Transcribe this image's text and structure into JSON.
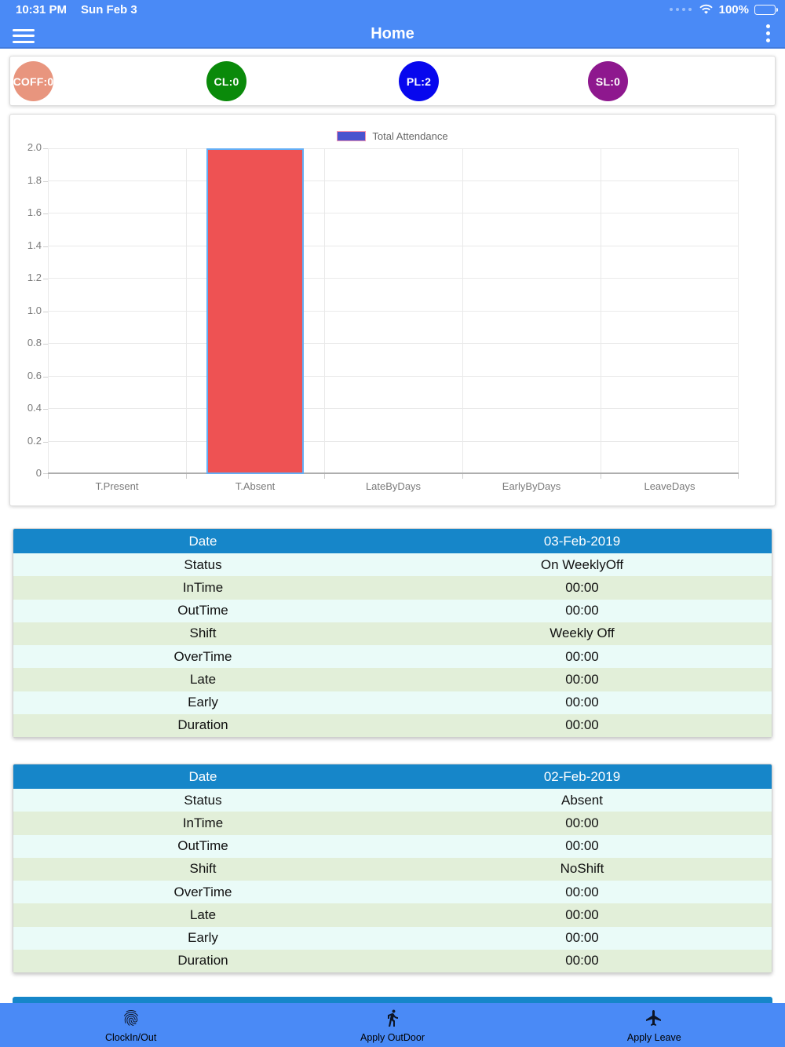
{
  "status_bar": {
    "time": "10:31 PM",
    "date": "Sun Feb 3",
    "battery_percent": "100%"
  },
  "header": {
    "title": "Home"
  },
  "badges": [
    {
      "name": "coff",
      "label": "COFF:0",
      "color": "#e8957e"
    },
    {
      "name": "cl",
      "label": "CL:0",
      "color": "#0a8a0a"
    },
    {
      "name": "pl",
      "label": "PL:2",
      "color": "#0707ee"
    },
    {
      "name": "sl",
      "label": "SL:0",
      "color": "#8e188e"
    }
  ],
  "chart_data": {
    "type": "bar",
    "title": "",
    "legend": [
      {
        "label": "Total Attendance",
        "swatch_fill": "#4a53ce",
        "swatch_border": "#f191b2"
      }
    ],
    "legend_position": "top",
    "categories": [
      "T.Present",
      "T.Absent",
      "LateByDays",
      "EarlyByDays",
      "LeaveDays"
    ],
    "values": [
      0,
      2,
      0,
      0,
      0
    ],
    "bar_color": "#ee5253",
    "bar_border": "#64aef5",
    "ylim": [
      0,
      2
    ],
    "ytick_step": 0.2,
    "yticks": [
      "2.0",
      "1.8",
      "1.6",
      "1.4",
      "1.2",
      "1.0",
      "0.8",
      "0.6",
      "0.4",
      "0.2",
      "0"
    ],
    "grid": true
  },
  "tables": [
    {
      "header": {
        "label": "Date",
        "value": "03-Feb-2019"
      },
      "rows": [
        [
          "Status",
          "On WeeklyOff"
        ],
        [
          "InTime",
          "00:00"
        ],
        [
          "OutTime",
          "00:00"
        ],
        [
          "Shift",
          "Weekly Off"
        ],
        [
          "OverTime",
          "00:00"
        ],
        [
          "Late",
          "00:00"
        ],
        [
          "Early",
          "00:00"
        ],
        [
          "Duration",
          "00:00"
        ]
      ]
    },
    {
      "header": {
        "label": "Date",
        "value": "02-Feb-2019"
      },
      "rows": [
        [
          "Status",
          "Absent"
        ],
        [
          "InTime",
          "00:00"
        ],
        [
          "OutTime",
          "00:00"
        ],
        [
          "Shift",
          "NoShift"
        ],
        [
          "OverTime",
          "00:00"
        ],
        [
          "Late",
          "00:00"
        ],
        [
          "Early",
          "00:00"
        ],
        [
          "Duration",
          "00:00"
        ]
      ]
    }
  ],
  "bottom_nav": {
    "items": [
      {
        "label": "ClockIn/Out",
        "icon": "fingerprint-icon"
      },
      {
        "label": "Apply OutDoor",
        "icon": "walking-person-icon"
      },
      {
        "label": "Apply Leave",
        "icon": "airplane-icon"
      }
    ]
  },
  "colors": {
    "app_bar_blue": "#4a8af6",
    "table_header_blue": "#1686c9",
    "row_cyan": "#eafbf8",
    "row_green": "#e2efd9"
  }
}
